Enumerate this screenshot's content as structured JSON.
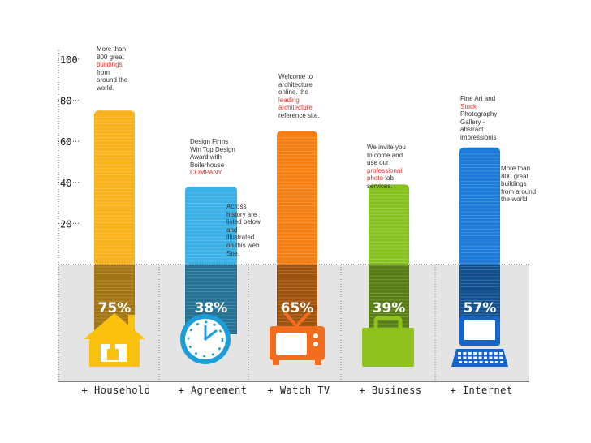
{
  "colors": {
    "band": "#e4e4e4",
    "axis": "#555555",
    "household": "#f9b21c",
    "agreement": "#3ab0e6",
    "watchtv": "#f57f13",
    "business": "#86c21f",
    "internet": "#1c7ad9",
    "icon_household": "#fbc10f",
    "icon_agreement": "#1e9ed8",
    "icon_watchtv": "#f36d1f",
    "icon_business": "#8fc21d",
    "icon_internet": "#1565c8",
    "highlight": "#e8332b"
  },
  "chart_data": {
    "type": "bar",
    "categories": [
      "+ Household",
      "+ Agreement",
      "+ Watch TV",
      "+ Business",
      "+ Internet"
    ],
    "values": [
      75,
      38,
      65,
      39,
      57
    ],
    "labels": [
      "75%",
      "38%",
      "65%",
      "39%",
      "57%"
    ],
    "y_ticks": [
      "100",
      "80",
      "60",
      "40",
      "20"
    ],
    "y_tick_values": [
      100,
      80,
      60,
      40,
      20
    ],
    "icons": [
      "house-icon",
      "clock-icon",
      "tv-icon",
      "briefcase-icon",
      "computer-icon"
    ],
    "grid": false
  },
  "notes": [
    {
      "pre": "More than 800 great ",
      "hl": "buildings",
      "post": " from around the world."
    },
    {
      "pre": "Design Firms Win Top Design Award with Boilerhouse ",
      "hl": "COMPANY",
      "post": ""
    },
    {
      "pre": "Across history are listed below and illustrated on this web Site.",
      "hl": "",
      "post": ""
    },
    {
      "pre": "Welcome to architecture online. the ",
      "hl": "leading architecture",
      "post": " reference site."
    },
    {
      "pre": "We invite you to come and use our ",
      "hl": "professional photo",
      "post": " lab services."
    },
    {
      "pre": "Fine Art and ",
      "hl": "Stock",
      "post": " Photography Gallery - abstract impressionis"
    },
    {
      "pre": "More than 800 great buildings from around the world",
      "hl": "",
      "post": ""
    }
  ]
}
